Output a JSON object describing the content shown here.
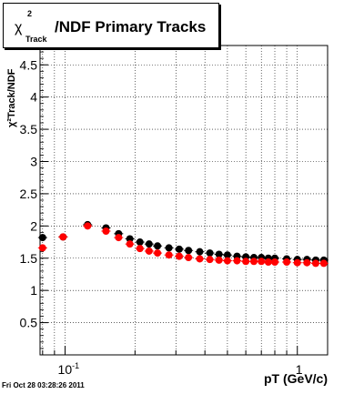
{
  "title": {
    "chi": "χ",
    "superscript": "2",
    "subscript": "Track",
    "rest": "/NDF  Primary Tracks"
  },
  "timestamp": "Fri Oct 28 03:28:26 2011",
  "chart_data": {
    "type": "scatter",
    "xscale": "log",
    "xlim": [
      0.078,
      1.35
    ],
    "ylim": [
      0,
      4.8
    ],
    "xlabel": "pT (GeV/c)",
    "ylabel": "χ²Track/NDF",
    "xticks_major": [
      {
        "value": 0.1,
        "base": "10",
        "exp": "-1"
      },
      {
        "value": 1,
        "base": "1",
        "exp": ""
      }
    ],
    "yticks": [
      "0.5",
      "1",
      "1.5",
      "2",
      "2.5",
      "3",
      "3.5",
      "4",
      "4.5"
    ],
    "grid": true,
    "series": [
      {
        "color": "#000000",
        "x": [
          0.08,
          0.098,
          0.125,
          0.15,
          0.17,
          0.19,
          0.21,
          0.23,
          0.25,
          0.28,
          0.31,
          0.34,
          0.38,
          0.42,
          0.46,
          0.5,
          0.55,
          0.6,
          0.65,
          0.7,
          0.75,
          0.8,
          0.9,
          1.0,
          1.1,
          1.2,
          1.3
        ],
        "y": [
          1.82,
          1.83,
          2.02,
          1.97,
          1.88,
          1.8,
          1.75,
          1.72,
          1.69,
          1.66,
          1.64,
          1.62,
          1.6,
          1.58,
          1.56,
          1.55,
          1.53,
          1.52,
          1.51,
          1.51,
          1.5,
          1.5,
          1.49,
          1.48,
          1.48,
          1.47,
          1.47
        ]
      },
      {
        "color": "#ff0000",
        "x": [
          0.08,
          0.098,
          0.125,
          0.15,
          0.17,
          0.19,
          0.21,
          0.23,
          0.25,
          0.28,
          0.31,
          0.34,
          0.38,
          0.42,
          0.46,
          0.5,
          0.55,
          0.6,
          0.65,
          0.7,
          0.75,
          0.8,
          0.9,
          1.0,
          1.1,
          1.2,
          1.3
        ],
        "y": [
          1.66,
          1.83,
          2.0,
          1.92,
          1.82,
          1.72,
          1.65,
          1.61,
          1.58,
          1.55,
          1.53,
          1.51,
          1.49,
          1.48,
          1.47,
          1.46,
          1.46,
          1.45,
          1.45,
          1.45,
          1.44,
          1.44,
          1.44,
          1.43,
          1.43,
          1.42,
          1.42
        ]
      }
    ]
  }
}
